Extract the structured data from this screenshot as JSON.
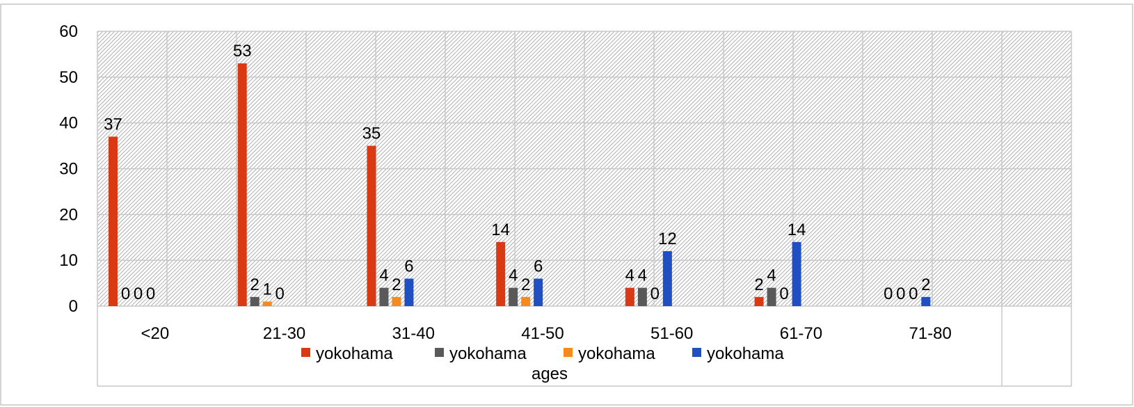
{
  "chart_data": {
    "type": "bar",
    "title": "",
    "xlabel": "ages",
    "ylabel": "",
    "ylim": [
      0,
      60
    ],
    "yticks": [
      0,
      10,
      20,
      30,
      40,
      50,
      60
    ],
    "categories": [
      "<20",
      "21-30",
      "31-40",
      "41-50",
      "51-60",
      "61-70",
      "71-80"
    ],
    "series": [
      {
        "name": "yokohama",
        "color": "#d93a14",
        "values": [
          37,
          53,
          35,
          14,
          4,
          2,
          0
        ]
      },
      {
        "name": "yokohama",
        "color": "#595959",
        "values": [
          0,
          2,
          4,
          4,
          4,
          4,
          0
        ]
      },
      {
        "name": "yokohama",
        "color": "#f58a1f",
        "values": [
          0,
          1,
          2,
          2,
          0,
          0,
          0
        ]
      },
      {
        "name": "yokohama",
        "color": "#1f4fc1",
        "values": [
          0,
          0,
          6,
          6,
          12,
          14,
          2
        ]
      }
    ],
    "data_labels": true,
    "grid": true,
    "legend_position": "bottom"
  }
}
